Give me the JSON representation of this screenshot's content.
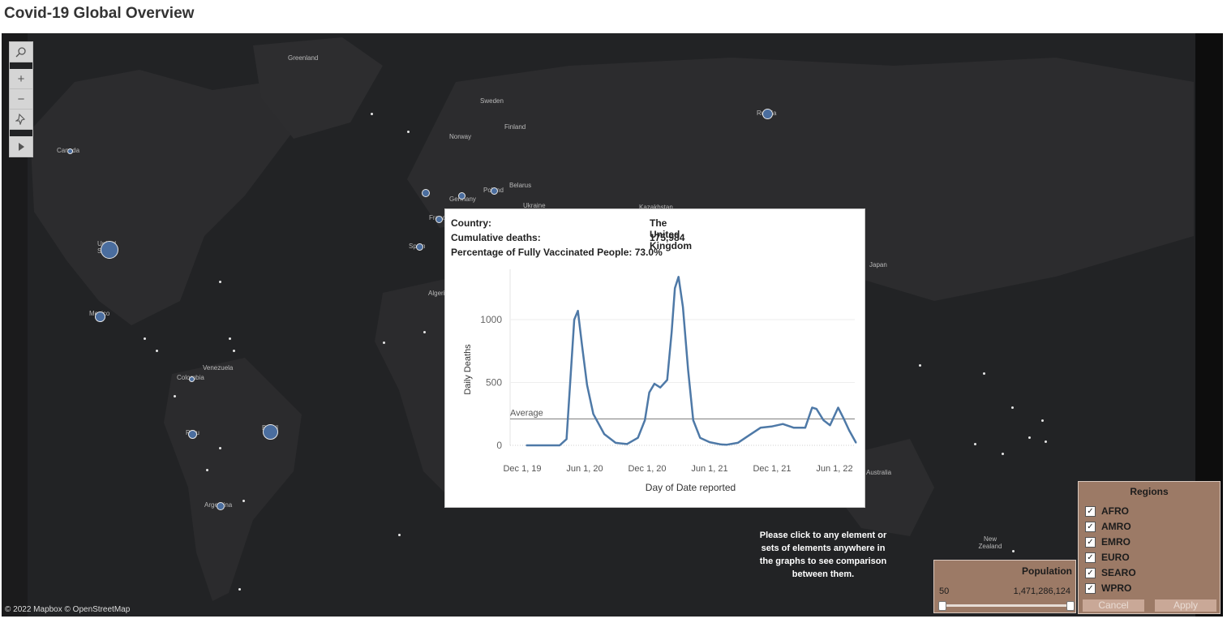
{
  "page": {
    "title": "Covid-19 Global Overview"
  },
  "map": {
    "credit": "© 2022 Mapbox © OpenStreetMap",
    "labels": {
      "greenland": "Greenland",
      "sweden": "Sweden",
      "norway": "Norway",
      "finland": "Finland",
      "canada": "Canada",
      "germany": "Germany",
      "poland": "Poland",
      "belarus": "Belarus",
      "ukraine": "Ukraine",
      "russia": "Russia",
      "united_states": "United States",
      "spain": "Spain",
      "mexico": "Mexico",
      "algeria": "Algeria",
      "venezuela": "Venezuela",
      "colombia": "Colombia",
      "peru": "Peru",
      "brazil": "Brazil",
      "argentina": "Argentina",
      "japan": "Japan",
      "australia": "Australia",
      "new_zealand": "New Zealand",
      "kazakhstan": "Kazakhstan",
      "france": "France"
    }
  },
  "toolbar": {
    "search_icon": "search-icon",
    "zoom_in": "+",
    "zoom_out": "−",
    "pin_icon": "pin-icon",
    "play_icon": "play-icon"
  },
  "tooltip": {
    "country_label": "Country:",
    "country_value": "The United Kingdom",
    "deaths_label": "Cumulative deaths:",
    "deaths_value": "175,984",
    "vax_label": "Percentage of Fully Vaccinated People:",
    "vax_value": "73.0%"
  },
  "chart_data": {
    "type": "line",
    "xlabel": "Day of Date reported",
    "ylabel": "Daily Deaths",
    "x_ticks": [
      "Dec 1, 19",
      "Jun 1, 20",
      "Dec 1, 20",
      "Jun 1, 21",
      "Dec 1, 21",
      "Jun 1, 22"
    ],
    "y_ticks": [
      "0",
      "500",
      "1000"
    ],
    "ylim": [
      0,
      1400
    ],
    "reference_line": {
      "label": "Average",
      "value": 210
    },
    "series": [
      {
        "x": [
          "2019-12-01",
          "2020-03-01",
          "2020-03-20",
          "2020-04-01",
          "2020-04-10",
          "2020-04-20",
          "2020-05-01",
          "2020-05-15",
          "2020-06-01",
          "2020-07-01",
          "2020-08-01",
          "2020-09-01",
          "2020-10-01",
          "2020-10-20",
          "2020-11-01",
          "2020-11-15",
          "2020-12-01",
          "2020-12-20",
          "2021-01-01",
          "2021-01-10",
          "2021-01-20",
          "2021-02-01",
          "2021-02-15",
          "2021-03-01",
          "2021-03-20",
          "2021-04-15",
          "2021-05-15",
          "2021-06-01",
          "2021-07-01",
          "2021-08-01",
          "2021-09-01",
          "2021-10-01",
          "2021-11-01",
          "2021-12-01",
          "2022-01-01",
          "2022-01-20",
          "2022-02-01",
          "2022-02-20",
          "2022-03-10",
          "2022-04-01",
          "2022-04-15",
          "2022-05-01",
          "2022-05-20"
        ],
        "values": [
          0,
          0,
          50,
          600,
          1000,
          1070,
          800,
          480,
          250,
          90,
          20,
          10,
          60,
          200,
          420,
          490,
          460,
          520,
          900,
          1250,
          1340,
          1100,
          600,
          200,
          60,
          25,
          8,
          5,
          20,
          80,
          140,
          150,
          170,
          140,
          140,
          300,
          290,
          200,
          160,
          300,
          220,
          120,
          20
        ]
      }
    ]
  },
  "hint": "Please click to any element or sets of elements anywhere in the graphs to see comparison between them.",
  "population": {
    "title": "Population",
    "min": "50",
    "max": "1,471,286,124",
    "range_fraction": [
      0,
      1
    ]
  },
  "regions": {
    "title": "Regions",
    "items": [
      {
        "label": "AFRO",
        "checked": true
      },
      {
        "label": "AMRO",
        "checked": true
      },
      {
        "label": "EMRO",
        "checked": true
      },
      {
        "label": "EURO",
        "checked": true
      },
      {
        "label": "SEARO",
        "checked": true
      },
      {
        "label": "WPRO",
        "checked": true
      }
    ],
    "cancel": "Cancel",
    "apply": "Apply"
  },
  "colors": {
    "accent": "#4e79a7",
    "map_bg": "#222325",
    "panel": "#9c7a66"
  }
}
